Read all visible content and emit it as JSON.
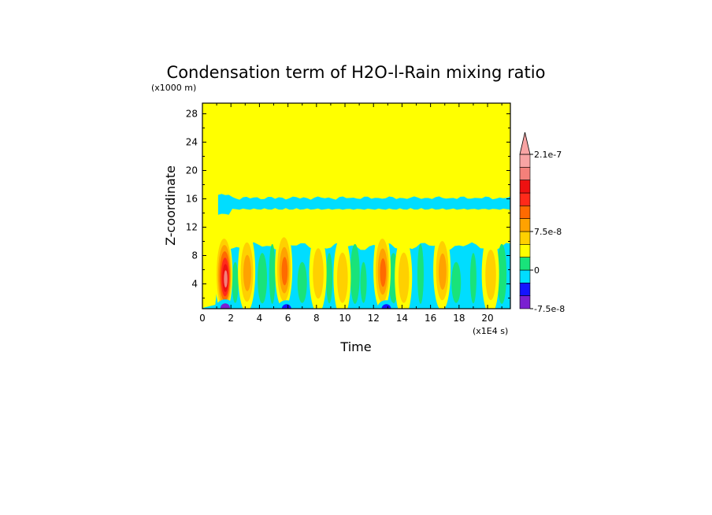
{
  "chart_data": {
    "type": "heatmap",
    "title": "Condensation term of H2O-l-Rain mixing ratio",
    "xlabel": "Time",
    "ylabel": "Z-coordinate",
    "x_unit_label": "(x1E4 s)",
    "y_unit_label": "(x1000 m)",
    "xlim": [
      0,
      21.6
    ],
    "ylim": [
      0.5,
      29.5
    ],
    "xticks": [
      0,
      2,
      4,
      6,
      8,
      10,
      12,
      14,
      16,
      18,
      20
    ],
    "yticks": [
      4,
      8,
      12,
      16,
      20,
      24,
      28
    ],
    "colorbar": {
      "levels": [
        -7.5e-08,
        -5e-08,
        -2.5e-08,
        0,
        2.5e-08,
        5e-08,
        7.5e-08,
        1e-07,
        1.25e-07,
        1.5e-07,
        1.8e-07,
        2.1e-07
      ],
      "colors": [
        "#7a1fd1",
        "#1414ff",
        "#00ddff",
        "#19e37a",
        "#ffff00",
        "#ffd000",
        "#ffa200",
        "#ff6a00",
        "#ff2a1a",
        "#ee1111",
        "#f4807a",
        "#f8a4a4"
      ],
      "labels": [
        {
          "value": 2.1e-07,
          "text": "2.1e-7"
        },
        {
          "value": 7.5e-08,
          "text": "7.5e-8"
        },
        {
          "value": 0,
          "text": "0"
        },
        {
          "value": -7.5e-08,
          "text": "-7.5e-8"
        }
      ],
      "extend": "max"
    },
    "background_level_value": 0,
    "features": {
      "upper_band": {
        "z_center": 15.3,
        "level": -2.5e-08
      },
      "lower_layer": {
        "z_top": 9.3,
        "level": -2.5e-08
      },
      "convective_cells": [
        {
          "t": 1.5,
          "z_center": 5.5,
          "peak": 2e-07
        },
        {
          "t": 3.1,
          "z_center": 5.8,
          "peak": 7.5e-08
        },
        {
          "t": 5.7,
          "z_center": 6.2,
          "peak": 1e-07
        },
        {
          "t": 8.1,
          "z_center": 5.6,
          "peak": 5e-08
        },
        {
          "t": 9.8,
          "z_center": 5.0,
          "peak": 5e-08
        },
        {
          "t": 12.6,
          "z_center": 6.0,
          "peak": 1e-07
        },
        {
          "t": 14.1,
          "z_center": 5.0,
          "peak": 5e-08
        },
        {
          "t": 16.8,
          "z_center": 6.0,
          "peak": 7.5e-08
        },
        {
          "t": 20.2,
          "z_center": 5.4,
          "peak": 5e-08
        }
      ],
      "negative_patches": [
        {
          "t": 1.6,
          "z": 0.8,
          "level": -7.5e-08
        },
        {
          "t": 5.9,
          "z": 0.7,
          "level": -5e-08
        },
        {
          "t": 12.9,
          "z": 0.7,
          "level": -5e-08
        }
      ]
    }
  }
}
